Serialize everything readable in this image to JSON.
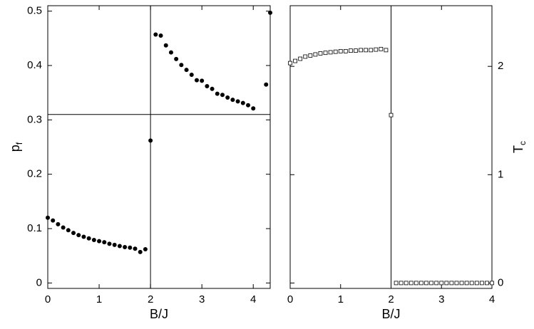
{
  "chart_data": [
    {
      "type": "scatter",
      "marker": "circle",
      "color": "#000000",
      "xlabel": "B/J",
      "ylabel": "p",
      "ylabel_sub": "f",
      "xlim": [
        0,
        4.33
      ],
      "xticks": [
        0,
        1,
        2,
        3,
        4
      ],
      "ylim": [
        -0.01,
        0.51
      ],
      "yticks": [
        0,
        0.1,
        0.2,
        0.3,
        0.4,
        0.5
      ],
      "hlines": [
        0.31
      ],
      "vlines": [
        2
      ],
      "x": [
        0,
        0.1,
        0.2,
        0.3,
        0.4,
        0.5,
        0.6,
        0.7,
        0.8,
        0.9,
        1.0,
        1.1,
        1.2,
        1.3,
        1.4,
        1.5,
        1.6,
        1.7,
        1.8,
        1.9,
        2.0,
        2.1,
        2.2,
        2.3,
        2.4,
        2.5,
        2.6,
        2.7,
        2.8,
        2.9,
        3.0,
        3.1,
        3.2,
        3.3,
        3.4,
        3.5,
        3.6,
        3.7,
        3.8,
        3.9,
        4.0,
        4.25,
        4.33
      ],
      "values": [
        0.12,
        0.115,
        0.108,
        0.102,
        0.097,
        0.092,
        0.088,
        0.085,
        0.082,
        0.079,
        0.077,
        0.075,
        0.072,
        0.07,
        0.068,
        0.066,
        0.065,
        0.063,
        0.057,
        0.062,
        0.262,
        0.457,
        0.455,
        0.437,
        0.424,
        0.412,
        0.401,
        0.392,
        0.383,
        0.373,
        0.372,
        0.362,
        0.357,
        0.348,
        0.346,
        0.341,
        0.337,
        0.334,
        0.331,
        0.327,
        0.321,
        0.365,
        0.497
      ]
    },
    {
      "type": "scatter",
      "marker": "square",
      "color": "#000000",
      "xlabel": "B/J",
      "ylabel": "T",
      "ylabel_sub": "c",
      "xlim": [
        0,
        4
      ],
      "xticks": [
        0,
        1,
        2,
        3,
        4
      ],
      "ylim": [
        -0.05,
        2.56
      ],
      "yticks": [
        0,
        1,
        2
      ],
      "vlines": [
        2
      ],
      "x": [
        0,
        0.1,
        0.2,
        0.3,
        0.4,
        0.5,
        0.6,
        0.7,
        0.8,
        0.9,
        1.0,
        1.1,
        1.2,
        1.3,
        1.4,
        1.5,
        1.6,
        1.7,
        1.8,
        1.9,
        2.0,
        2.1,
        2.2,
        2.3,
        2.4,
        2.5,
        2.6,
        2.7,
        2.8,
        2.9,
        3.0,
        3.1,
        3.2,
        3.3,
        3.4,
        3.5,
        3.6,
        3.7,
        3.8,
        3.9,
        4.0
      ],
      "values": [
        2.03,
        2.05,
        2.07,
        2.09,
        2.1,
        2.11,
        2.12,
        2.125,
        2.13,
        2.135,
        2.14,
        2.14,
        2.145,
        2.145,
        2.15,
        2.15,
        2.15,
        2.155,
        2.16,
        2.15,
        1.55,
        0,
        0,
        0,
        0,
        0,
        0,
        0,
        0,
        0,
        0,
        0,
        0,
        0,
        0,
        0,
        0,
        0,
        0,
        0,
        0
      ]
    }
  ]
}
